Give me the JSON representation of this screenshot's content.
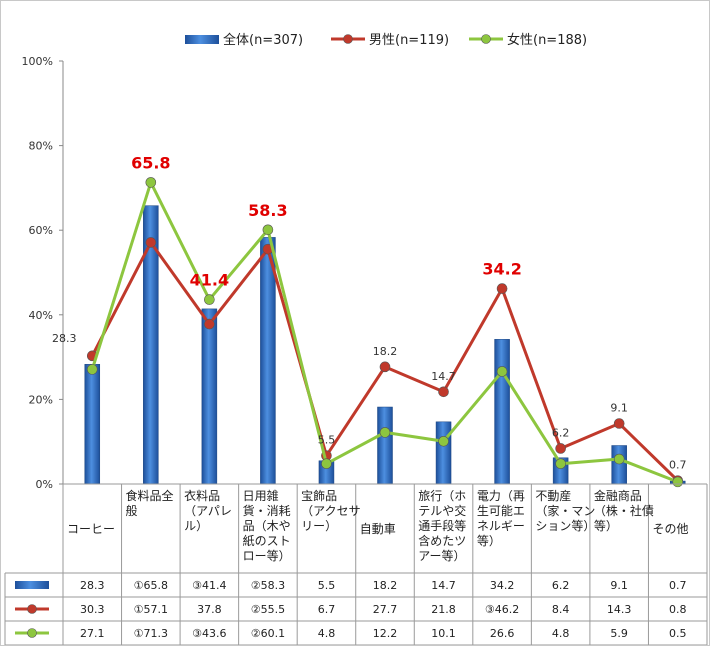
{
  "chart_data": {
    "type": "bar",
    "categories": [
      [
        "コーヒー"
      ],
      [
        "食料品全",
        "般"
      ],
      [
        "衣料品",
        "（アパレ",
        "ル）"
      ],
      [
        "日用雑",
        "貨・消耗",
        "品（木や",
        "紙のスト",
        "ロー等）"
      ],
      [
        "宝飾品",
        "（アクセサ",
        "リー）"
      ],
      [
        "自動車"
      ],
      [
        "旅行（ホ",
        "テルや交",
        "通手段等",
        "含めたツ",
        "アー等）"
      ],
      [
        "電力（再",
        "生可能エ",
        "ネルギー",
        "等）"
      ],
      [
        "不動産",
        "（家・マン",
        "ション等）"
      ],
      [
        "金融商品",
        "（株・社債",
        "等）"
      ],
      [
        "その他"
      ]
    ],
    "series": [
      {
        "name": "全体(n=307)",
        "kind": "bar",
        "color": "#2e6fc6",
        "values": [
          28.3,
          65.8,
          41.4,
          58.3,
          5.5,
          18.2,
          14.7,
          34.2,
          6.2,
          9.1,
          0.7
        ],
        "table": [
          "28.3",
          "①65.8",
          "③41.4",
          "②58.3",
          "5.5",
          "18.2",
          "14.7",
          "34.2",
          "6.2",
          "9.1",
          "0.7"
        ]
      },
      {
        "name": "男性(n=119)",
        "kind": "line",
        "color": "#c0392b",
        "values": [
          30.3,
          57.1,
          37.8,
          55.5,
          6.7,
          27.7,
          21.8,
          46.2,
          8.4,
          14.3,
          0.8
        ],
        "table": [
          "30.3",
          "①57.1",
          "37.8",
          "②55.5",
          "6.7",
          "27.7",
          "21.8",
          "③46.2",
          "8.4",
          "14.3",
          "0.8"
        ]
      },
      {
        "name": "女性(n=188)",
        "kind": "line",
        "color": "#8dc63f",
        "values": [
          27.1,
          71.3,
          43.6,
          60.1,
          4.8,
          12.2,
          10.1,
          26.6,
          4.8,
          5.9,
          0.5
        ],
        "table": [
          "27.1",
          "①71.3",
          "③43.6",
          "②60.1",
          "4.8",
          "12.2",
          "10.1",
          "26.6",
          "4.8",
          "5.9",
          "0.5"
        ]
      }
    ],
    "data_labels": [
      "28.3",
      "65.8",
      "41.4",
      "58.3",
      "5.5",
      "18.2",
      "14.7",
      "34.2",
      "6.2",
      "9.1",
      "0.7"
    ],
    "highlighted_labels": [
      1,
      2,
      3,
      7
    ],
    "y_ticks": [
      "0%",
      "20%",
      "40%",
      "60%",
      "80%",
      "100%"
    ],
    "ylim": [
      0,
      100
    ],
    "grid": false,
    "legend_position": "top"
  }
}
